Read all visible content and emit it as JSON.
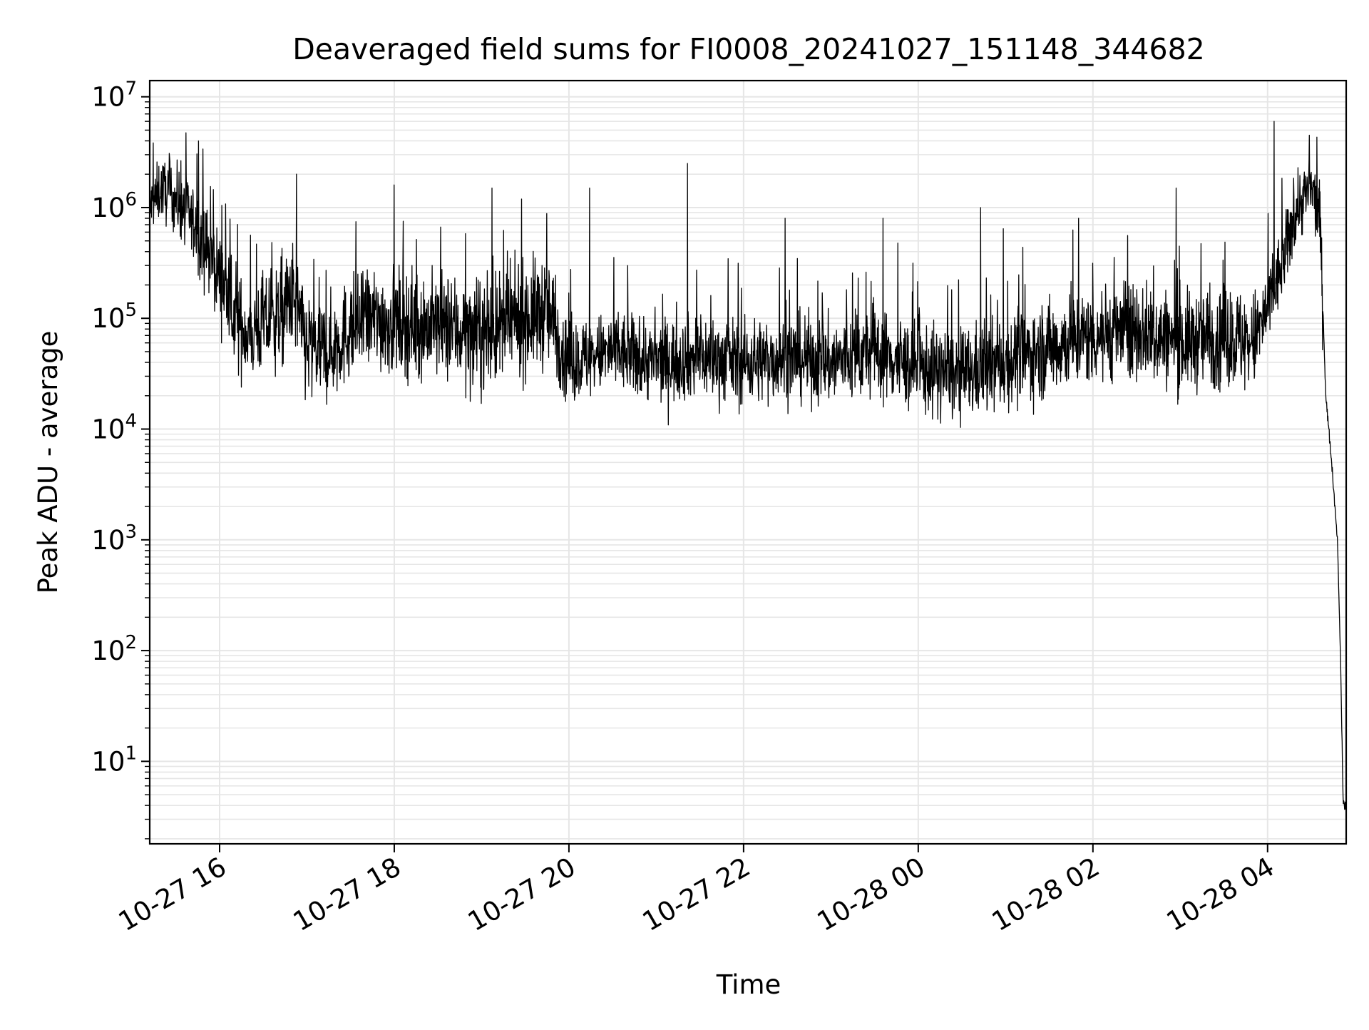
{
  "chart_data": {
    "type": "line",
    "title": "Deaveraged field sums for FI0008_20241027_151148_344682",
    "xlabel": "Time",
    "ylabel": "Peak ADU - average",
    "yscale": "log",
    "ylim": [
      1.8,
      14000000
    ],
    "xlim": [
      "2024-10-27 15:12",
      "2024-10-28 04:54"
    ],
    "grid": true,
    "line_color": "#000000",
    "grid_color": "#e6e6e6",
    "x_ticks": [
      {
        "time": "2024-10-27 16:00",
        "label": "10-27 16"
      },
      {
        "time": "2024-10-27 18:00",
        "label": "10-27 18"
      },
      {
        "time": "2024-10-27 20:00",
        "label": "10-27 20"
      },
      {
        "time": "2024-10-27 22:00",
        "label": "10-27 22"
      },
      {
        "time": "2024-10-28 00:00",
        "label": "10-28 00"
      },
      {
        "time": "2024-10-28 02:00",
        "label": "10-28 02"
      },
      {
        "time": "2024-10-28 04:00",
        "label": "10-28 04"
      }
    ],
    "y_ticks": [
      {
        "value": 10,
        "base": "10",
        "exp": "1"
      },
      {
        "value": 100,
        "base": "10",
        "exp": "2"
      },
      {
        "value": 1000,
        "base": "10",
        "exp": "3"
      },
      {
        "value": 10000,
        "base": "10",
        "exp": "4"
      },
      {
        "value": 100000,
        "base": "10",
        "exp": "5"
      },
      {
        "value": 1000000,
        "base": "10",
        "exp": "6"
      },
      {
        "value": 10000000,
        "base": "10",
        "exp": "7"
      }
    ],
    "series": [
      {
        "x": [
          "2024-10-27 15:12",
          "2024-10-27 15:20",
          "2024-10-27 15:30",
          "2024-10-27 15:40",
          "2024-10-27 15:50",
          "2024-10-27 16:00",
          "2024-10-27 16:10",
          "2024-10-27 16:20",
          "2024-10-27 16:30",
          "2024-10-27 16:40",
          "2024-10-27 16:50",
          "2024-10-27 17:00",
          "2024-10-27 17:15",
          "2024-10-27 17:30",
          "2024-10-27 17:45",
          "2024-10-27 18:00",
          "2024-10-27 18:30",
          "2024-10-27 19:00",
          "2024-10-27 19:30",
          "2024-10-27 19:45",
          "2024-10-27 20:00",
          "2024-10-27 20:30",
          "2024-10-27 21:00",
          "2024-10-27 21:30",
          "2024-10-27 22:00",
          "2024-10-27 22:30",
          "2024-10-27 23:00",
          "2024-10-27 23:30",
          "2024-10-28 00:00",
          "2024-10-28 00:30",
          "2024-10-28 01:00",
          "2024-10-28 01:30",
          "2024-10-28 02:00",
          "2024-10-28 02:30",
          "2024-10-28 03:00",
          "2024-10-28 03:30",
          "2024-10-28 03:50",
          "2024-10-28 04:00",
          "2024-10-28 04:10",
          "2024-10-28 04:20",
          "2024-10-28 04:30",
          "2024-10-28 04:36",
          "2024-10-28 04:40",
          "2024-10-28 04:44",
          "2024-10-28 04:48",
          "2024-10-28 04:50",
          "2024-10-28 04:52",
          "2024-10-28 04:54"
        ],
        "y": [
          1000000,
          1500000,
          1200000,
          800000,
          450000,
          250000,
          100000,
          70000,
          90000,
          100000,
          150000,
          55000,
          50000,
          80000,
          100000,
          90000,
          85000,
          70000,
          100000,
          120000,
          40000,
          50000,
          40000,
          45000,
          40000,
          45000,
          40000,
          50000,
          35000,
          30000,
          40000,
          55000,
          70000,
          80000,
          60000,
          70000,
          60000,
          120000,
          300000,
          1000000,
          1500000,
          800000,
          20000,
          5000,
          1000,
          100,
          4,
          4
        ]
      }
    ],
    "noise": {
      "envelope_x": [
        "2024-10-27 15:12",
        "2024-10-27 16:00",
        "2024-10-27 17:00",
        "2024-10-27 17:15",
        "2024-10-27 19:45",
        "2024-10-27 20:00",
        "2024-10-28 00:00",
        "2024-10-28 03:50",
        "2024-10-28 04:00",
        "2024-10-28 04:36"
      ],
      "envelope_decades": [
        0.25,
        0.38,
        0.52,
        0.45,
        0.5,
        0.35,
        0.4,
        0.45,
        0.35,
        0.3
      ],
      "spike_max": [
        4000000,
        2000000,
        1600000,
        1500000,
        1500000,
        2500000,
        800000,
        800000,
        1000000,
        800000,
        1500000,
        6000000
      ]
    }
  }
}
